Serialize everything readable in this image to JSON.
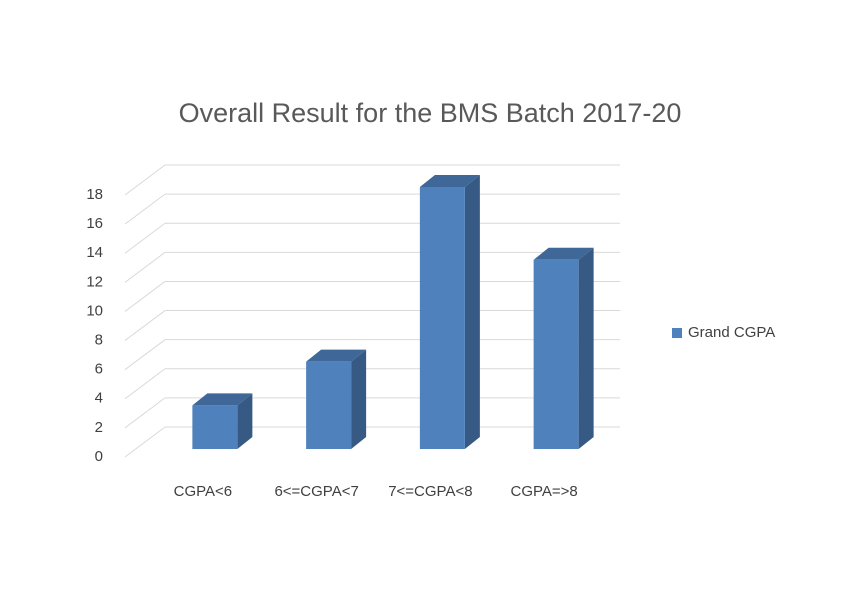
{
  "chart_data": {
    "type": "bar",
    "title": "Overall Result for the BMS Batch 2017-20",
    "categories": [
      "CGPA<6",
      "6<=CGPA<7",
      "7<=CGPA<8",
      "CGPA=>8"
    ],
    "series": [
      {
        "name": "Grand CGPA",
        "color": "#4f81bd",
        "values": [
          3,
          6,
          18,
          13
        ]
      }
    ],
    "ylim": [
      0,
      18
    ],
    "yticks": [
      0,
      2,
      4,
      6,
      8,
      10,
      12,
      14,
      16,
      18
    ],
    "grid": true,
    "legend": "right"
  }
}
